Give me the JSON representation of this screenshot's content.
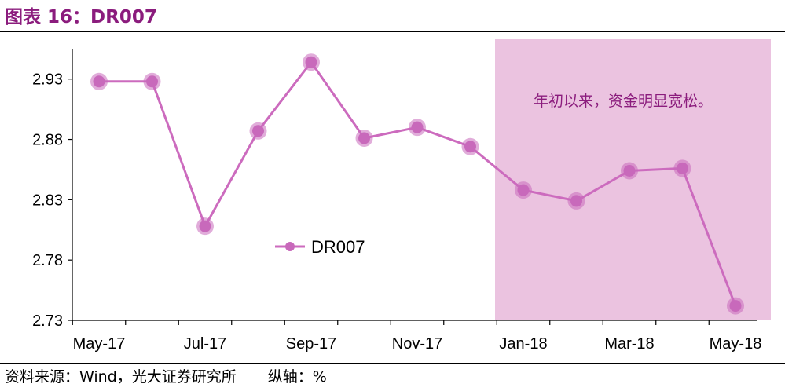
{
  "title": "图表 16：DR007",
  "source": "资料来源：Wind，光大证券研究所",
  "axis_note": "纵轴：%",
  "colors": {
    "title": "#8B1C7D",
    "line": "#CC6BBE",
    "marker": "#C869BB",
    "shade": "#EBC3E0"
  },
  "chart_data": {
    "type": "line",
    "title": "",
    "xlabel": "",
    "ylabel": "",
    "x": [
      "May-17",
      "Jun-17",
      "Jul-17",
      "Aug-17",
      "Sep-17",
      "Oct-17",
      "Nov-17",
      "Dec-17",
      "Jan-18",
      "Feb-18",
      "Mar-18",
      "Apr-18",
      "May-18"
    ],
    "x_tick_labels": [
      "May-17",
      "Jul-17",
      "Sep-17",
      "Nov-17",
      "Jan-18",
      "Mar-18",
      "May-18"
    ],
    "series": [
      {
        "name": "DR007",
        "values": [
          2.928,
          2.928,
          2.808,
          2.887,
          2.944,
          2.881,
          2.89,
          2.874,
          2.838,
          2.829,
          2.854,
          2.856,
          2.742
        ]
      }
    ],
    "ylim": [
      2.73,
      2.95
    ],
    "yticks": [
      "2.73",
      "2.78",
      "2.83",
      "2.88",
      "2.93"
    ],
    "legend_position": "center-left",
    "highlight": {
      "from": "Jan-18",
      "to": "May-18",
      "label": "年初以来，资金明显宽松。"
    },
    "grid": false
  }
}
